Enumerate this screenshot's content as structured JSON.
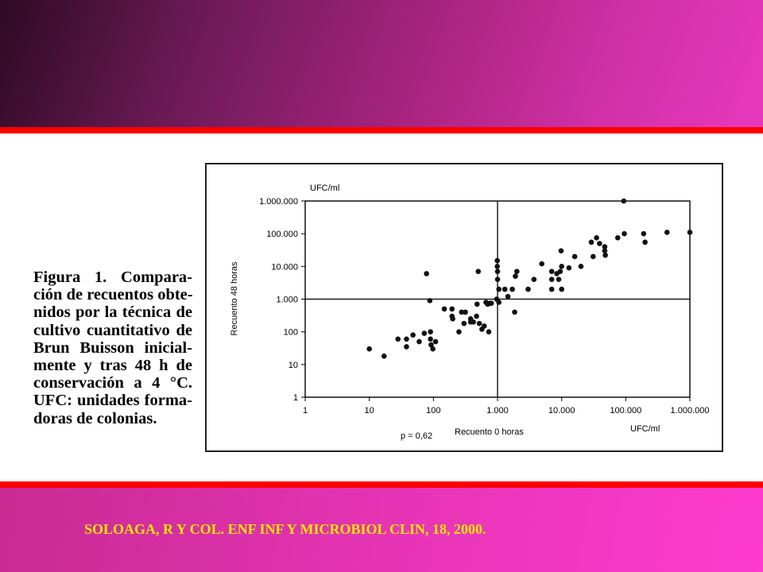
{
  "caption": {
    "lines": [
      "Figura 1. Compara-",
      "ción de recuentos obte-",
      "nidos por la técnica de",
      "cultivo cuantitativo de",
      "Brun Buisson inicial-",
      "mente y tras 48 h de",
      "conservación a 4 °C.",
      "UFC: unidades forma-",
      "doras de colonias."
    ]
  },
  "citation": "SOLOAGA, R Y COL. ENF INF Y MICROBIOL CLIN, 18, 2000.",
  "colors": {
    "top_band": "#8a1f6a",
    "bottom_band": "#e534b4",
    "divider": "#ff0000",
    "citation_text": "#ffe600"
  },
  "chart_data": {
    "type": "scatter",
    "x_scale": "log",
    "y_scale": "log",
    "xlim": [
      1,
      1000000
    ],
    "ylim": [
      1,
      1000000
    ],
    "x_ticks": [
      1,
      10,
      100,
      1000,
      10000,
      100000,
      1000000
    ],
    "y_ticks": [
      1,
      10,
      100,
      1000,
      10000,
      100000,
      1000000
    ],
    "x_tick_labels": [
      "1",
      "10",
      "100",
      "1.000",
      "10.000",
      "100.000",
      "1.000.000"
    ],
    "y_tick_labels": [
      "1",
      "10",
      "100",
      "1.000",
      "10.000",
      "100.000",
      "1.000.000"
    ],
    "xlabel": "Recuento 0 horas",
    "ylabel": "Recuento 48 horas",
    "x_unit": "UFC/ml",
    "y_unit": "UFC/ml",
    "annotation": "p = 0,62",
    "reference_lines": {
      "x": 1000,
      "y": 1000
    },
    "grid": false,
    "points": [
      [
        10,
        30
      ],
      [
        17,
        18
      ],
      [
        28,
        60
      ],
      [
        38,
        35
      ],
      [
        38,
        60
      ],
      [
        48,
        80
      ],
      [
        60,
        50
      ],
      [
        72,
        90
      ],
      [
        78,
        6000
      ],
      [
        88,
        900
      ],
      [
        90,
        60
      ],
      [
        90,
        100
      ],
      [
        92,
        40
      ],
      [
        98,
        30
      ],
      [
        108,
        50
      ],
      [
        148,
        500
      ],
      [
        195,
        500
      ],
      [
        195,
        300
      ],
      [
        200,
        250
      ],
      [
        250,
        100
      ],
      [
        275,
        400
      ],
      [
        300,
        180
      ],
      [
        315,
        400
      ],
      [
        380,
        200
      ],
      [
        380,
        250
      ],
      [
        420,
        200
      ],
      [
        470,
        300
      ],
      [
        480,
        700
      ],
      [
        500,
        7000
      ],
      [
        520,
        180
      ],
      [
        570,
        120
      ],
      [
        620,
        150
      ],
      [
        660,
        800
      ],
      [
        700,
        700
      ],
      [
        730,
        100
      ],
      [
        760,
        750
      ],
      [
        800,
        750
      ],
      [
        970,
        1000
      ],
      [
        990,
        15000
      ],
      [
        990,
        10000
      ],
      [
        1000,
        7000
      ],
      [
        1000,
        4000
      ],
      [
        1050,
        2000
      ],
      [
        1050,
        800
      ],
      [
        1300,
        2000
      ],
      [
        1450,
        1200
      ],
      [
        1700,
        2000
      ],
      [
        1850,
        400
      ],
      [
        1900,
        5000
      ],
      [
        2000,
        7000
      ],
      [
        3000,
        2000
      ],
      [
        3700,
        4000
      ],
      [
        4900,
        12000
      ],
      [
        7000,
        4000
      ],
      [
        7000,
        7000
      ],
      [
        7000,
        2000
      ],
      [
        8400,
        6000
      ],
      [
        9000,
        4000
      ],
      [
        9500,
        7000
      ],
      [
        9800,
        30000
      ],
      [
        10000,
        10000
      ],
      [
        10000,
        2000
      ],
      [
        13000,
        9000
      ],
      [
        16000,
        20000
      ],
      [
        20000,
        10000
      ],
      [
        29000,
        55000
      ],
      [
        31000,
        20000
      ],
      [
        35000,
        75000
      ],
      [
        39000,
        50000
      ],
      [
        47000,
        40000
      ],
      [
        47000,
        30000
      ],
      [
        48000,
        22000
      ],
      [
        75000,
        75000
      ],
      [
        93000,
        1000000
      ],
      [
        95000,
        100000
      ],
      [
        190000,
        100000
      ],
      [
        200000,
        55000
      ],
      [
        440000,
        110000
      ],
      [
        1000000,
        110000
      ]
    ]
  }
}
